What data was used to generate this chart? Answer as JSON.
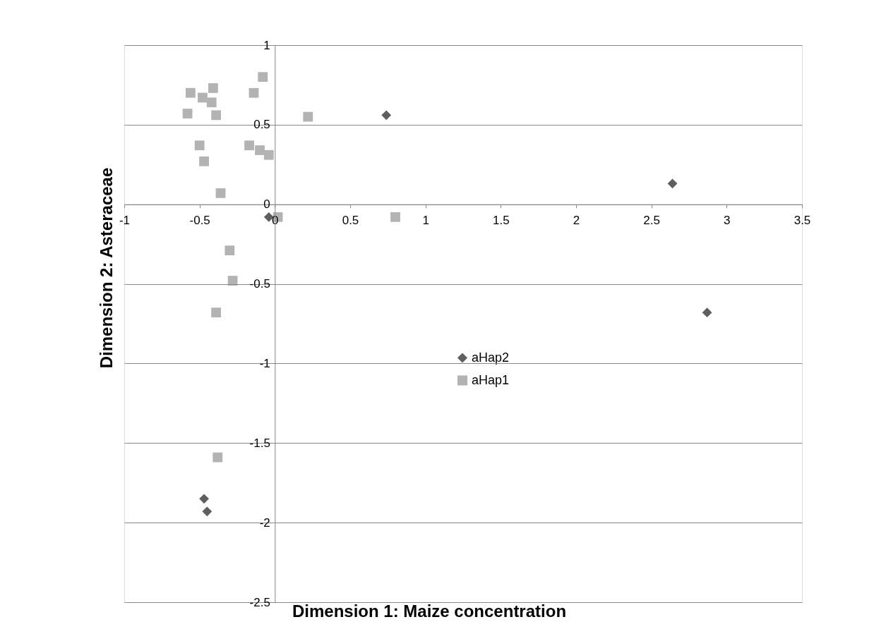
{
  "chart_data": {
    "type": "scatter",
    "xlabel": "Dimension 1: Maize concentration",
    "ylabel": "Dimension 2: Asteraceae",
    "xlim": [
      -1,
      3.5
    ],
    "xticks": [
      -1,
      -0.5,
      0,
      0.5,
      1,
      1.5,
      2,
      2.5,
      3,
      3.5
    ],
    "ylim": [
      -2.5,
      1
    ],
    "yticks": [
      -2.5,
      -2,
      -1.5,
      -1,
      -0.5,
      0,
      0.5,
      1
    ],
    "grid": "y",
    "legend": "center",
    "series": [
      {
        "name": "aHap2",
        "color": "#5f5f5f",
        "marker": "diamond",
        "x": [
          0.74,
          2.64,
          2.87,
          -0.04,
          -0.47,
          -0.45
        ],
        "values": [
          0.56,
          0.13,
          -0.68,
          -0.08,
          -1.85,
          -1.93
        ]
      },
      {
        "name": "aHap1",
        "color": "#b3b3b3",
        "marker": "square",
        "x": [
          -0.56,
          -0.48,
          -0.41,
          -0.42,
          -0.58,
          -0.39,
          -0.08,
          -0.14,
          0.22,
          -0.5,
          -0.47,
          -0.17,
          -0.1,
          -0.04,
          -0.36,
          0.02,
          0.8,
          -0.3,
          -0.28,
          -0.39,
          -0.38
        ],
        "values": [
          0.7,
          0.67,
          0.73,
          0.64,
          0.57,
          0.56,
          0.8,
          0.7,
          0.55,
          0.37,
          0.27,
          0.37,
          0.34,
          0.31,
          0.07,
          -0.08,
          -0.08,
          -0.29,
          -0.48,
          -0.68,
          -1.59
        ]
      }
    ]
  }
}
